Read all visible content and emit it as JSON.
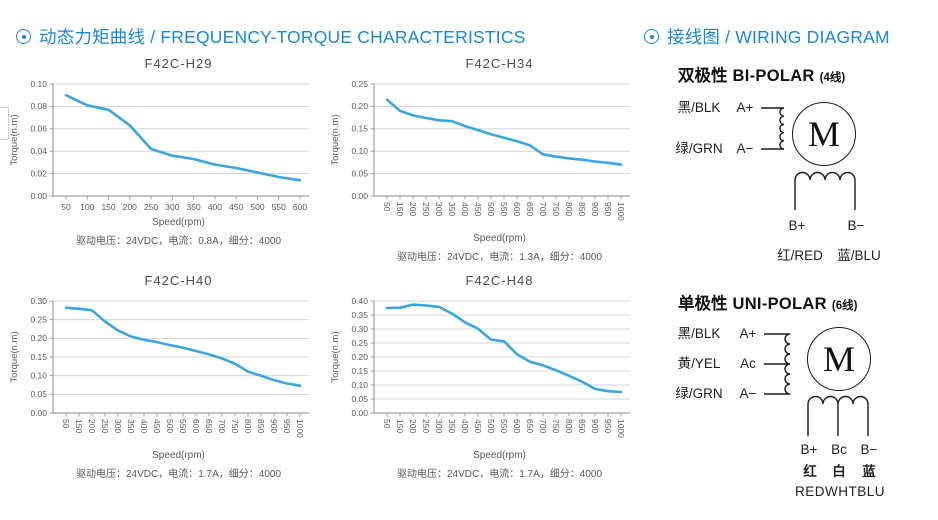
{
  "headers": {
    "left": {
      "icon": "circled-dot",
      "title": "动态力矩曲线 / FREQUENCY-TORQUE CHARACTERISTICS"
    },
    "right": {
      "icon": "circled-dot",
      "title": "接线图 / WIRING DIAGRAM"
    }
  },
  "colors": {
    "accent_blue": "#1a87d7",
    "curve_blue": "#3aa5de",
    "gridline": "#d4d4d4",
    "axis": "#a0a0a0",
    "tick_text": "#595959"
  },
  "chart_data": [
    {
      "type": "line",
      "title": "F42C-H29",
      "xlabel": "Speed(rpm)",
      "ylabel": "Torque(n.m)",
      "caption": "驱动电压：24VDC，电流：0.8A，细分：4000",
      "x_labels": [
        "50",
        "100",
        "150",
        "200",
        "250",
        "300",
        "350",
        "400",
        "450",
        "500",
        "550",
        "600"
      ],
      "rotate_x_labels": false,
      "ylim": [
        0,
        0.1
      ],
      "y_ticks": [
        "0.00",
        "0.02",
        "0.04",
        "0.06",
        "0.08",
        "0.10"
      ],
      "values": [
        0.09,
        0.081,
        0.077,
        0.063,
        0.042,
        0.036,
        0.033,
        0.028,
        0.025,
        0.021,
        0.017,
        0.014
      ],
      "grid": "horizontal",
      "legend": "none"
    },
    {
      "type": "line",
      "title": "F42C-H34",
      "xlabel": "Speed(rpm)",
      "ylabel": "Torque(n.m)",
      "caption": "驱动电压：24VDC，电流：1.3A，细分：4000",
      "x_labels": [
        "50",
        "150",
        "200",
        "250",
        "300",
        "350",
        "400",
        "450",
        "500",
        "550",
        "600",
        "650",
        "700",
        "750",
        "800",
        "850",
        "900",
        "950",
        "1000"
      ],
      "rotate_x_labels": true,
      "ylim": [
        0,
        0.25
      ],
      "y_ticks": [
        "0.00",
        "0.05",
        "0.10",
        "0.15",
        "0.20",
        "0.25"
      ],
      "values": [
        0.215,
        0.19,
        0.18,
        0.174,
        0.169,
        0.167,
        0.156,
        0.147,
        0.138,
        0.13,
        0.122,
        0.113,
        0.093,
        0.088,
        0.084,
        0.081,
        0.077,
        0.074,
        0.07
      ],
      "grid": "horizontal",
      "legend": "none"
    },
    {
      "type": "line",
      "title": "F42C-H40",
      "xlabel": "Speed(rpm)",
      "ylabel": "Torque(n.m)",
      "caption": "驱动电压：24VDC，电流：1.7A，细分：4000",
      "x_labels": [
        "50",
        "150",
        "200",
        "250",
        "300",
        "350",
        "400",
        "450",
        "500",
        "550",
        "600",
        "650",
        "700",
        "750",
        "800",
        "850",
        "900",
        "950",
        "1000"
      ],
      "rotate_x_labels": true,
      "ylim": [
        0,
        0.3
      ],
      "y_ticks": [
        "0.00",
        "0.05",
        "0.10",
        "0.15",
        "0.20",
        "0.25",
        "0.30"
      ],
      "values": [
        0.282,
        0.279,
        0.275,
        0.245,
        0.221,
        0.205,
        0.196,
        0.19,
        0.182,
        0.175,
        0.166,
        0.157,
        0.146,
        0.132,
        0.111,
        0.1,
        0.088,
        0.079,
        0.073
      ],
      "grid": "horizontal",
      "legend": "none"
    },
    {
      "type": "line",
      "title": "F42C-H48",
      "xlabel": "Speed(rpm)",
      "ylabel": "Torque(n.m)",
      "caption": "驱动电压：24VDC，电流：1.7A，细分：4000",
      "x_labels": [
        "50",
        "150",
        "200",
        "250",
        "300",
        "350",
        "400",
        "450",
        "500",
        "550",
        "600",
        "650",
        "700",
        "750",
        "800",
        "850",
        "900",
        "950",
        "1000"
      ],
      "rotate_x_labels": true,
      "ylim": [
        0,
        0.4
      ],
      "y_ticks": [
        "0.00",
        "0.05",
        "0.10",
        "0.15",
        "0.20",
        "0.25",
        "0.30",
        "0.35",
        "0.40"
      ],
      "values": [
        0.375,
        0.376,
        0.387,
        0.384,
        0.379,
        0.355,
        0.324,
        0.301,
        0.262,
        0.256,
        0.21,
        0.183,
        0.17,
        0.153,
        0.133,
        0.112,
        0.086,
        0.078,
        0.075
      ],
      "grid": "horizontal",
      "legend": "none"
    }
  ],
  "wiring": {
    "bipolar": {
      "title_zh": "双极性",
      "title_en": "BI-POLAR",
      "note": "(4线)",
      "motor_label": "M",
      "left_terminals": [
        {
          "color_label": "黑/BLK",
          "terminal": "A+"
        },
        {
          "color_label": "绿/GRN",
          "terminal": "A−"
        }
      ],
      "bottom_terminals": [
        "B+",
        "B−"
      ],
      "bottom_colors": [
        "红/RED",
        "蓝/BLU"
      ]
    },
    "unipolar": {
      "title_zh": "单极性",
      "title_en": "UNI-POLAR",
      "note": "(6线)",
      "motor_label": "M",
      "left_terminals": [
        {
          "color_label": "黑/BLK",
          "terminal": "A+"
        },
        {
          "color_label": "黄/YEL",
          "terminal": "Ac"
        },
        {
          "color_label": "绿/GRN",
          "terminal": "A−"
        }
      ],
      "bottom_terminals": [
        "B+",
        "Bc",
        "B−"
      ],
      "bottom_colors_zh": [
        "红",
        "白",
        "蓝"
      ],
      "bottom_colors_en": "REDWHTBLU"
    }
  }
}
